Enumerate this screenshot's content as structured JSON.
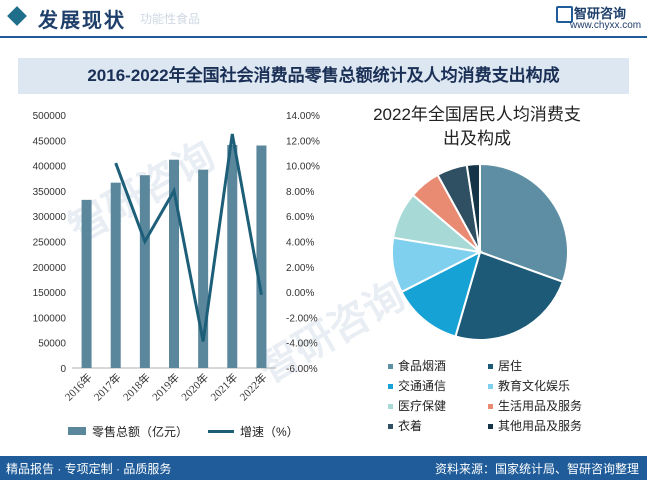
{
  "header": {
    "section_title": "发展现状",
    "section_sub": "功能性食品",
    "brand_name": "智研咨询",
    "brand_url": "www.chyxx.com"
  },
  "main_title": "2016-2022年全国社会消费品零售总额统计及人均消费支出构成",
  "chart_data": [
    {
      "type": "bar",
      "title": "",
      "categories": [
        "2016年",
        "2017年",
        "2018年",
        "2019年",
        "2020年",
        "2021年",
        "2022年"
      ],
      "series": [
        {
          "name": "零售总额（亿元）",
          "type": "bar",
          "axis": "left",
          "color": "#5b879c",
          "values": [
            332316,
            366262,
            380987,
            411649,
            391981,
            440823,
            439733
          ]
        },
        {
          "name": "增速（%）",
          "type": "line",
          "axis": "right",
          "color": "#1d5e78",
          "values": [
            null,
            10.2,
            4.0,
            8.0,
            -3.9,
            12.5,
            -0.2
          ]
        }
      ],
      "y_left": {
        "min": 0,
        "max": 500000,
        "ticks": [
          "0",
          "50000",
          "100000",
          "150000",
          "200000",
          "250000",
          "300000",
          "350000",
          "400000",
          "450000",
          "500000"
        ]
      },
      "y_right": {
        "min": -6,
        "max": 14,
        "ticks": [
          "-6.00%",
          "-4.00%",
          "-2.00%",
          "0.00%",
          "2.00%",
          "4.00%",
          "6.00%",
          "8.00%",
          "10.00%",
          "12.00%",
          "14.00%"
        ]
      },
      "legend_position": "bottom",
      "grid": false
    },
    {
      "type": "pie",
      "title": "2022年全国居民人均消费支出及构成",
      "labels": [
        "食品烟酒",
        "居住",
        "交通通信",
        "教育文化娱乐",
        "医疗保健",
        "生活用品及服务",
        "衣着",
        "其他用品及服务"
      ],
      "values": [
        30.5,
        24.0,
        13.0,
        10.1,
        8.6,
        5.8,
        5.6,
        2.4
      ],
      "colors": [
        "#5e8ea3",
        "#1c5a78",
        "#17a2d6",
        "#7fd0ef",
        "#a7d9d6",
        "#e98a72",
        "#2f4f62",
        "#163447"
      ],
      "legend_position": "bottom"
    }
  ],
  "pie_title_lines": [
    "2022年全国居民人均消费支",
    "出及构成"
  ],
  "footer": {
    "left": "精品报告 · 专项定制 · 品质服务",
    "right": "资料来源：国家统计局、智研咨询整理"
  },
  "watermark": "智研咨询"
}
